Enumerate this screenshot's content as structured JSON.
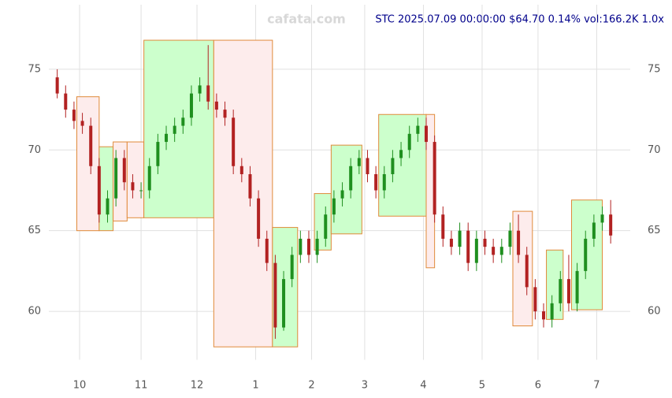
{
  "chart_data": {
    "type": "candlestick",
    "title": "STC 2025.07.09 00:00:00 $64.70 0.14% vol:166.2K 1.0x",
    "watermark": "cafata.com",
    "title_color": "#00008b",
    "up_color": "#1f8f1f",
    "down_color": "#b22222",
    "grid": true,
    "xlim": [
      -3,
      205
    ],
    "ylim": [
      57,
      79
    ],
    "yticks": [
      60,
      65,
      70,
      75
    ],
    "xticks": [
      {
        "value": 8,
        "label": "10"
      },
      {
        "value": 30,
        "label": "11"
      },
      {
        "value": 50,
        "label": "12"
      },
      {
        "value": 71,
        "label": "1"
      },
      {
        "value": 91,
        "label": "2"
      },
      {
        "value": 110,
        "label": "3"
      },
      {
        "value": 131,
        "label": "4"
      },
      {
        "value": 152,
        "label": "5"
      },
      {
        "value": 172,
        "label": "6"
      },
      {
        "value": 193,
        "label": "7"
      }
    ],
    "x": [
      0,
      3,
      6,
      9,
      12,
      15,
      18,
      21,
      24,
      27,
      30,
      33,
      36,
      39,
      42,
      45,
      48,
      51,
      54,
      57,
      60,
      63,
      66,
      69,
      72,
      75,
      78,
      81,
      84,
      87,
      90,
      93,
      96,
      99,
      102,
      105,
      108,
      111,
      114,
      117,
      120,
      123,
      126,
      129,
      132,
      135,
      138,
      141,
      144,
      147,
      150,
      153,
      156,
      159,
      162,
      165,
      168,
      171,
      174,
      177,
      180,
      183,
      186,
      189,
      192,
      195,
      198
    ],
    "open": [
      74.5,
      73.5,
      72.5,
      71.8,
      71.5,
      69.0,
      66.0,
      67.0,
      69.5,
      68.0,
      67.5,
      67.5,
      69.0,
      70.5,
      71.0,
      71.5,
      72.0,
      73.5,
      74.0,
      73.0,
      72.5,
      72.0,
      69.0,
      68.5,
      67.0,
      64.5,
      63.0,
      59.0,
      62.0,
      63.5,
      64.5,
      63.5,
      64.5,
      66.0,
      67.0,
      67.5,
      69.0,
      69.5,
      68.5,
      67.5,
      68.5,
      69.5,
      70.0,
      71.0,
      71.5,
      70.5,
      66.0,
      64.5,
      64.0,
      65.0,
      63.0,
      64.5,
      64.0,
      63.5,
      64.0,
      65.0,
      63.5,
      61.5,
      60.0,
      59.5,
      60.5,
      62.0,
      60.5,
      62.5,
      64.5,
      65.5,
      66.0
    ],
    "close": [
      73.5,
      72.5,
      71.8,
      71.5,
      69.0,
      66.0,
      67.0,
      69.5,
      68.0,
      67.5,
      67.5,
      69.0,
      70.5,
      71.0,
      71.5,
      72.0,
      73.5,
      74.0,
      73.0,
      72.5,
      72.0,
      69.0,
      68.5,
      67.0,
      64.5,
      63.0,
      59.0,
      62.0,
      63.5,
      64.5,
      63.5,
      64.5,
      66.0,
      67.0,
      67.5,
      69.0,
      69.5,
      68.5,
      67.5,
      68.5,
      69.5,
      70.0,
      71.0,
      71.5,
      70.5,
      66.0,
      64.5,
      64.0,
      65.0,
      63.0,
      64.5,
      64.0,
      63.5,
      64.0,
      65.0,
      63.5,
      61.5,
      60.0,
      59.5,
      60.5,
      62.0,
      60.5,
      62.5,
      64.5,
      65.5,
      66.0,
      64.7
    ],
    "high": [
      75.0,
      74.0,
      73.0,
      72.3,
      72.0,
      69.5,
      67.5,
      70.0,
      70.0,
      68.5,
      68.0,
      69.5,
      71.0,
      71.5,
      72.0,
      72.5,
      74.0,
      74.5,
      76.5,
      73.5,
      73.0,
      72.5,
      69.5,
      69.0,
      67.5,
      65.0,
      63.5,
      62.5,
      64.0,
      65.0,
      65.0,
      65.0,
      66.5,
      67.5,
      68.0,
      69.5,
      70.0,
      70.0,
      69.0,
      69.0,
      70.0,
      70.5,
      71.5,
      72.0,
      72.0,
      70.9,
      66.5,
      65.0,
      65.5,
      65.5,
      65.0,
      65.0,
      64.5,
      64.5,
      65.5,
      66.0,
      64.0,
      62.0,
      60.5,
      61.0,
      62.5,
      63.5,
      63.0,
      65.0,
      66.0,
      66.5,
      66.9
    ],
    "low": [
      73.2,
      72.0,
      71.3,
      71.0,
      68.5,
      65.5,
      65.5,
      66.5,
      67.5,
      67.0,
      67.0,
      67.0,
      68.5,
      70.0,
      70.5,
      71.0,
      71.5,
      73.0,
      72.5,
      72.0,
      71.5,
      68.5,
      68.0,
      66.5,
      64.0,
      62.5,
      58.3,
      58.8,
      61.5,
      63.0,
      63.0,
      63.0,
      64.0,
      65.5,
      66.5,
      67.0,
      68.5,
      68.0,
      67.0,
      67.0,
      68.0,
      69.0,
      69.5,
      70.5,
      70.0,
      65.5,
      64.0,
      63.5,
      63.5,
      62.5,
      62.5,
      63.5,
      63.0,
      63.0,
      63.5,
      63.0,
      61.0,
      59.5,
      59.0,
      59.0,
      60.0,
      60.0,
      60.0,
      62.0,
      64.0,
      65.0,
      64.2
    ],
    "zones": [
      {
        "x": [
          7,
          15
        ],
        "y": [
          65.0,
          73.3
        ],
        "color": "#fdecec"
      },
      {
        "x": [
          15,
          20
        ],
        "y": [
          65.0,
          70.2
        ],
        "color": "#ccffcc"
      },
      {
        "x": [
          20,
          25
        ],
        "y": [
          65.6,
          70.5
        ],
        "color": "#fdecec"
      },
      {
        "x": [
          25,
          31
        ],
        "y": [
          65.8,
          70.5
        ],
        "color": "#fdecec"
      },
      {
        "x": [
          31,
          56
        ],
        "y": [
          65.8,
          76.8
        ],
        "color": "#ccffcc"
      },
      {
        "x": [
          56,
          77
        ],
        "y": [
          57.8,
          76.8
        ],
        "color": "#fdecec"
      },
      {
        "x": [
          77,
          86
        ],
        "y": [
          57.8,
          65.2
        ],
        "color": "#ccffcc"
      },
      {
        "x": [
          92,
          98
        ],
        "y": [
          63.8,
          67.3
        ],
        "color": "#ccffcc"
      },
      {
        "x": [
          98,
          109
        ],
        "y": [
          64.8,
          70.3
        ],
        "color": "#ccffcc"
      },
      {
        "x": [
          115,
          132
        ],
        "y": [
          65.9,
          72.2
        ],
        "color": "#ccffcc"
      },
      {
        "x": [
          132,
          135
        ],
        "y": [
          62.7,
          72.2
        ],
        "color": "#fdecec"
      },
      {
        "x": [
          163,
          170
        ],
        "y": [
          59.1,
          66.2
        ],
        "color": "#fdecec"
      },
      {
        "x": [
          175,
          181
        ],
        "y": [
          59.5,
          63.8
        ],
        "color": "#ccffcc"
      },
      {
        "x": [
          184,
          195
        ],
        "y": [
          60.1,
          66.9
        ],
        "color": "#ccffcc"
      }
    ],
    "zone_border": "#e08a3a"
  }
}
